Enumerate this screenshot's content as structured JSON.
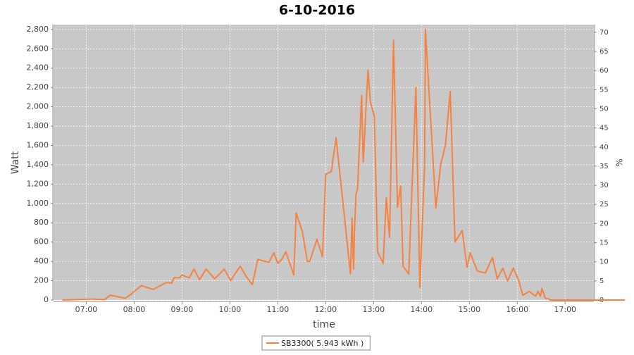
{
  "chart_data": {
    "type": "line",
    "title": "6-10-2016",
    "x_label": "time",
    "y_label": "Watt",
    "y2_label": "%",
    "x": [
      390,
      425,
      443,
      450,
      469,
      476,
      489,
      504,
      520,
      524,
      527,
      530,
      537,
      540,
      549,
      555,
      562,
      570,
      581,
      593,
      601,
      607,
      613,
      620,
      628,
      635,
      649,
      655,
      660,
      665,
      670,
      680,
      683,
      691,
      697,
      700,
      709,
      716,
      720,
      727,
      733,
      751,
      753,
      754,
      755,
      756,
      758,
      760,
      765,
      767,
      773,
      776,
      781,
      785,
      792,
      796,
      800,
      805,
      810,
      814,
      817,
      824,
      833,
      838,
      842,
      844,
      845,
      858,
      864,
      870,
      876,
      882,
      891,
      897,
      901,
      910,
      920,
      929,
      935,
      942,
      948,
      955,
      962,
      967,
      975,
      983,
      986,
      989,
      991,
      995,
      1000,
      1001,
      1005,
      1010,
      1015,
      1020,
      1024,
      1031,
      1035,
      1040,
      1043,
      1048,
      1052,
      1062,
      1065,
      1071,
      1077,
      1095
    ],
    "series": [
      {
        "name": "SB3300( 5.943 kWh )",
        "color": "#f58240",
        "values": [
          0,
          10,
          5,
          50,
          20,
          60,
          150,
          110,
          180,
          180,
          175,
          230,
          230,
          260,
          230,
          320,
          210,
          320,
          220,
          320,
          200,
          280,
          350,
          250,
          160,
          420,
          390,
          490,
          380,
          420,
          500,
          260,
          900,
          700,
          400,
          400,
          630,
          450,
          1300,
          1330,
          1680,
          270,
          850,
          500,
          320,
          700,
          1100,
          1150,
          2120,
          1430,
          2380,
          2050,
          1900,
          500,
          380,
          1060,
          650,
          2690,
          960,
          1180,
          350,
          270,
          2200,
          130,
          1000,
          1400,
          2800,
          950,
          1400,
          1600,
          2160,
          600,
          720,
          340,
          490,
          300,
          280,
          440,
          220,
          330,
          200,
          330,
          200,
          50,
          90,
          40,
          90,
          40,
          120,
          20,
          10,
          0,
          0,
          0,
          0,
          0,
          0,
          0,
          0,
          0,
          0,
          0,
          0,
          0,
          0,
          0,
          0,
          0
        ]
      }
    ],
    "xlim": [
      379,
      1056
    ],
    "xticks": [
      {
        "value": 420,
        "label": "07:00"
      },
      {
        "value": 480,
        "label": "08:00"
      },
      {
        "value": 540,
        "label": "09:00"
      },
      {
        "value": 600,
        "label": "10:00"
      },
      {
        "value": 660,
        "label": "11:00"
      },
      {
        "value": 720,
        "label": "12:00"
      },
      {
        "value": 780,
        "label": "13:00"
      },
      {
        "value": 840,
        "label": "14:00"
      },
      {
        "value": 900,
        "label": "15:00"
      },
      {
        "value": 960,
        "label": "16:00"
      },
      {
        "value": 1020,
        "label": "17:00"
      }
    ],
    "ylim": [
      0,
      2850
    ],
    "yticks": [
      0,
      200,
      400,
      600,
      800,
      {
        "value": 1000,
        "label": "1,000"
      },
      {
        "value": 1200,
        "label": "1,200"
      },
      {
        "value": 1400,
        "label": "1,400"
      },
      {
        "value": 1600,
        "label": "1,600"
      },
      {
        "value": 1800,
        "label": "1,800"
      },
      {
        "value": 2000,
        "label": "2,000"
      },
      {
        "value": 2200,
        "label": "2,200"
      },
      {
        "value": 2400,
        "label": "2,400"
      },
      {
        "value": 2600,
        "label": "2,600"
      },
      {
        "value": 2800,
        "label": "2,800"
      }
    ],
    "y2lim": [
      0,
      72
    ],
    "y2ticks": [
      0,
      5,
      10,
      15,
      20,
      25,
      30,
      35,
      40,
      45,
      50,
      55,
      60,
      65,
      70
    ],
    "grid": true,
    "legend": "bottom"
  }
}
